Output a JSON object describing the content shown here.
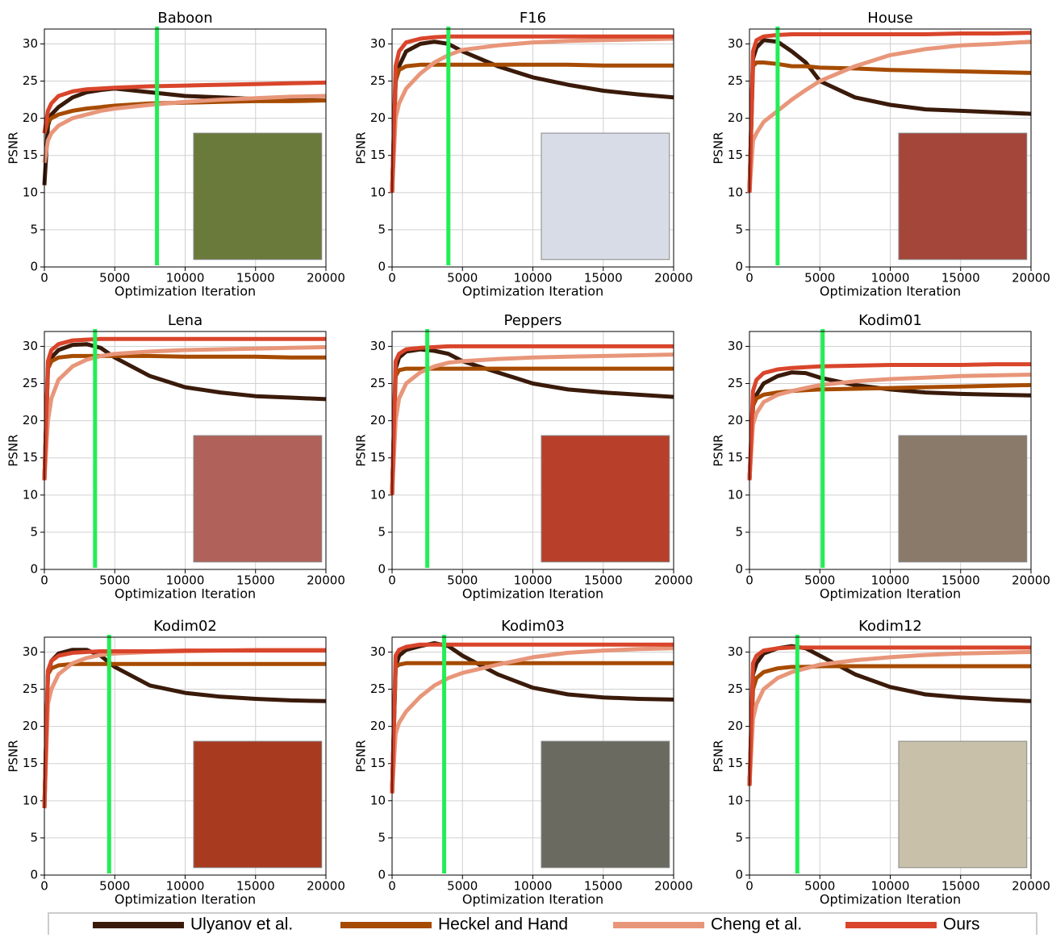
{
  "legend": [
    {
      "name": "Ulyanov et al.",
      "color": "#3a1a0a"
    },
    {
      "name": "Heckel and Hand",
      "color": "#a64b00"
    },
    {
      "name": "Cheng et al.",
      "color": "#e8967a"
    },
    {
      "name": "Ours",
      "color": "#d9452b"
    }
  ],
  "chart_data": [
    {
      "type": "line",
      "title": "Baboon",
      "xlabel": "Optimization Iteration",
      "ylabel": "PSNR",
      "xlim": [
        0,
        20000
      ],
      "ylim": [
        0,
        32
      ],
      "xticks": [
        0,
        5000,
        10000,
        15000,
        20000
      ],
      "yticks": [
        0,
        5,
        10,
        15,
        20,
        25,
        30
      ],
      "grid": true,
      "marker_x": 8000,
      "marker_color": "#22ee55",
      "x": [
        0,
        250,
        500,
        1000,
        2000,
        3000,
        4000,
        5000,
        7500,
        10000,
        12500,
        15000,
        17500,
        20000
      ],
      "series": [
        {
          "values": [
            11,
            19,
            20.5,
            21.5,
            22.8,
            23.5,
            23.8,
            24,
            23.5,
            23,
            22.8,
            22.6,
            22.5,
            22.4
          ]
        },
        {
          "values": [
            18,
            19.5,
            20,
            20.5,
            21,
            21.3,
            21.5,
            21.7,
            22,
            22.1,
            22.2,
            22.3,
            22.3,
            22.4
          ]
        },
        {
          "values": [
            14,
            17,
            18,
            19,
            20,
            20.5,
            21,
            21.3,
            21.8,
            22.2,
            22.5,
            22.7,
            22.9,
            23
          ]
        },
        {
          "values": [
            18,
            21,
            22,
            23,
            23.6,
            23.9,
            24,
            24.1,
            24.3,
            24.4,
            24.5,
            24.6,
            24.7,
            24.8
          ]
        }
      ]
    },
    {
      "type": "line",
      "title": "F16",
      "xlabel": "Optimization Iteration",
      "ylabel": "PSNR",
      "xlim": [
        0,
        20000
      ],
      "ylim": [
        0,
        32
      ],
      "xticks": [
        0,
        5000,
        10000,
        15000,
        20000
      ],
      "yticks": [
        0,
        5,
        10,
        15,
        20,
        25,
        30
      ],
      "grid": true,
      "marker_x": 4000,
      "marker_color": "#22ee55",
      "x": [
        0,
        250,
        500,
        1000,
        2000,
        3000,
        4000,
        5000,
        7500,
        10000,
        12500,
        15000,
        17500,
        20000
      ],
      "series": [
        {
          "values": [
            10,
            25,
            27,
            29,
            30,
            30.3,
            30,
            29,
            27,
            25.5,
            24.5,
            23.7,
            23.2,
            22.8
          ]
        },
        {
          "values": [
            10,
            25,
            26.5,
            27,
            27.2,
            27.2,
            27.2,
            27.2,
            27.2,
            27.2,
            27.2,
            27.1,
            27.1,
            27.1
          ]
        },
        {
          "values": [
            10,
            20,
            22,
            24,
            26,
            27.5,
            28.5,
            29.2,
            29.8,
            30.2,
            30.4,
            30.5,
            30.6,
            30.7
          ]
        },
        {
          "values": [
            10,
            27,
            29,
            30.2,
            30.7,
            30.9,
            31,
            31,
            31,
            31,
            31,
            31,
            31,
            31
          ]
        }
      ]
    },
    {
      "type": "line",
      "title": "House",
      "xlabel": "Optimization Iteration",
      "ylabel": "PSNR",
      "xlim": [
        0,
        20000
      ],
      "ylim": [
        0,
        32
      ],
      "xticks": [
        0,
        5000,
        10000,
        15000,
        20000
      ],
      "yticks": [
        0,
        5,
        10,
        15,
        20,
        25,
        30
      ],
      "grid": true,
      "marker_x": 2000,
      "marker_color": "#22ee55",
      "x": [
        0,
        250,
        500,
        1000,
        2000,
        3000,
        4000,
        5000,
        7500,
        10000,
        12500,
        15000,
        17500,
        20000
      ],
      "series": [
        {
          "values": [
            10,
            28,
            29.5,
            30.5,
            30.3,
            29,
            27.5,
            25,
            22.8,
            21.8,
            21.2,
            21,
            20.8,
            20.6
          ]
        },
        {
          "values": [
            10,
            27,
            27.5,
            27.5,
            27.3,
            27,
            27,
            26.8,
            26.7,
            26.5,
            26.4,
            26.3,
            26.2,
            26.1
          ]
        },
        {
          "values": [
            10,
            17,
            18,
            19.5,
            21,
            22.5,
            23.8,
            25,
            27,
            28.5,
            29.3,
            29.8,
            30,
            30.3
          ]
        },
        {
          "values": [
            10,
            29,
            30.5,
            31,
            31.2,
            31.3,
            31.3,
            31.3,
            31.3,
            31.3,
            31.3,
            31.4,
            31.4,
            31.5
          ]
        }
      ]
    },
    {
      "type": "line",
      "title": "Lena",
      "xlabel": "Optimization Iteration",
      "ylabel": "PSNR",
      "xlim": [
        0,
        20000
      ],
      "ylim": [
        0,
        32
      ],
      "xticks": [
        0,
        5000,
        10000,
        15000,
        20000
      ],
      "yticks": [
        0,
        5,
        10,
        15,
        20,
        25,
        30
      ],
      "grid": true,
      "marker_x": 3600,
      "marker_color": "#22ee55",
      "x": [
        0,
        250,
        500,
        1000,
        2000,
        3000,
        4000,
        5000,
        7500,
        10000,
        12500,
        15000,
        17500,
        20000
      ],
      "series": [
        {
          "values": [
            12,
            27,
            28.5,
            29.5,
            30.2,
            30.3,
            29.8,
            28.5,
            26,
            24.5,
            23.8,
            23.3,
            23.1,
            22.9
          ]
        },
        {
          "values": [
            12,
            27,
            28,
            28.5,
            28.7,
            28.7,
            28.7,
            28.7,
            28.7,
            28.6,
            28.6,
            28.6,
            28.5,
            28.5
          ]
        },
        {
          "values": [
            12,
            20,
            23,
            25.5,
            27.3,
            28.2,
            28.7,
            29,
            29.3,
            29.5,
            29.6,
            29.7,
            29.8,
            29.9
          ]
        },
        {
          "values": [
            12,
            28,
            29.5,
            30.3,
            30.8,
            30.9,
            31,
            31,
            31,
            31,
            31,
            31,
            31,
            31
          ]
        }
      ]
    },
    {
      "type": "line",
      "title": "Peppers",
      "xlabel": "Optimization Iteration",
      "ylabel": "PSNR",
      "xlim": [
        0,
        20000
      ],
      "ylim": [
        0,
        32
      ],
      "xticks": [
        0,
        5000,
        10000,
        15000,
        20000
      ],
      "yticks": [
        0,
        5,
        10,
        15,
        20,
        25,
        30
      ],
      "grid": true,
      "marker_x": 2500,
      "marker_color": "#22ee55",
      "x": [
        0,
        250,
        500,
        1000,
        2000,
        3000,
        4000,
        5000,
        7500,
        10000,
        12500,
        15000,
        17500,
        20000
      ],
      "series": [
        {
          "values": [
            10,
            27,
            28.5,
            29.3,
            29.6,
            29.4,
            29,
            28,
            26.5,
            25,
            24.2,
            23.8,
            23.5,
            23.2
          ]
        },
        {
          "values": [
            10,
            26,
            26.8,
            27,
            27,
            27,
            27,
            27,
            27,
            27,
            27,
            27,
            27,
            27
          ]
        },
        {
          "values": [
            10,
            20,
            23,
            25,
            26.5,
            27.3,
            27.8,
            28,
            28.3,
            28.5,
            28.6,
            28.7,
            28.8,
            28.9
          ]
        },
        {
          "values": [
            10,
            28,
            29,
            29.6,
            29.8,
            29.9,
            30,
            30,
            30,
            30,
            30,
            30,
            30,
            30
          ]
        }
      ]
    },
    {
      "type": "line",
      "title": "Kodim01",
      "xlabel": "Optimization Iteration",
      "ylabel": "PSNR",
      "xlim": [
        0,
        20000
      ],
      "ylim": [
        0,
        32
      ],
      "xticks": [
        0,
        5000,
        10000,
        15000,
        20000
      ],
      "yticks": [
        0,
        5,
        10,
        15,
        20,
        25,
        30
      ],
      "grid": true,
      "marker_x": 5200,
      "marker_color": "#22ee55",
      "x": [
        0,
        250,
        500,
        1000,
        2000,
        3000,
        4000,
        5000,
        7500,
        10000,
        12500,
        15000,
        17500,
        20000
      ],
      "series": [
        {
          "values": [
            12,
            22,
            23.5,
            25,
            26,
            26.5,
            26.4,
            25.8,
            24.8,
            24.2,
            23.8,
            23.6,
            23.5,
            23.4
          ]
        },
        {
          "values": [
            12,
            22,
            23,
            23.5,
            23.8,
            24,
            24.1,
            24.2,
            24.3,
            24.4,
            24.5,
            24.6,
            24.7,
            24.8
          ]
        },
        {
          "values": [
            12,
            19.5,
            21,
            22.5,
            23.5,
            24,
            24.4,
            24.8,
            25.3,
            25.6,
            25.8,
            26,
            26.1,
            26.2
          ]
        },
        {
          "values": [
            12,
            24,
            25.5,
            26.4,
            26.9,
            27.1,
            27.2,
            27.3,
            27.4,
            27.5,
            27.5,
            27.5,
            27.6,
            27.6
          ]
        }
      ]
    },
    {
      "type": "line",
      "title": "Kodim02",
      "xlabel": "Optimization Iteration",
      "ylabel": "PSNR",
      "xlim": [
        0,
        20000
      ],
      "ylim": [
        0,
        32
      ],
      "xticks": [
        0,
        5000,
        10000,
        15000,
        20000
      ],
      "yticks": [
        0,
        5,
        10,
        15,
        20,
        25,
        30
      ],
      "grid": true,
      "marker_x": 4600,
      "marker_color": "#22ee55",
      "x": [
        0,
        250,
        500,
        1000,
        2000,
        3000,
        4000,
        5000,
        7500,
        10000,
        12500,
        15000,
        17500,
        20000
      ],
      "series": [
        {
          "values": [
            9,
            27,
            28.8,
            29.8,
            30.3,
            30.3,
            29.5,
            28,
            25.5,
            24.5,
            24,
            23.7,
            23.5,
            23.4
          ]
        },
        {
          "values": [
            9,
            27,
            27.8,
            28.2,
            28.4,
            28.4,
            28.4,
            28.4,
            28.4,
            28.4,
            28.4,
            28.4,
            28.4,
            28.4
          ]
        },
        {
          "values": [
            9,
            23,
            25,
            27,
            28.5,
            29.2,
            29.6,
            29.8,
            30,
            30.1,
            30.2,
            30.3,
            30.3,
            30.3
          ]
        },
        {
          "values": [
            9,
            27.5,
            28.8,
            29.5,
            29.9,
            30,
            30.1,
            30.1,
            30.1,
            30.2,
            30.2,
            30.2,
            30.2,
            30.2
          ]
        }
      ]
    },
    {
      "type": "line",
      "title": "Kodim03",
      "xlabel": "Optimization Iteration",
      "ylabel": "PSNR",
      "xlim": [
        0,
        20000
      ],
      "ylim": [
        0,
        32
      ],
      "xticks": [
        0,
        5000,
        10000,
        15000,
        20000
      ],
      "yticks": [
        0,
        5,
        10,
        15,
        20,
        25,
        30
      ],
      "grid": true,
      "marker_x": 3700,
      "marker_color": "#22ee55",
      "x": [
        0,
        250,
        500,
        1000,
        2000,
        3000,
        4000,
        5000,
        7500,
        10000,
        12500,
        15000,
        17500,
        20000
      ],
      "series": [
        {
          "values": [
            11,
            28,
            29.5,
            30.3,
            30.8,
            31.2,
            30.8,
            29.5,
            27,
            25.2,
            24.3,
            23.9,
            23.7,
            23.6
          ]
        },
        {
          "values": [
            11,
            28,
            28.3,
            28.5,
            28.5,
            28.5,
            28.5,
            28.5,
            28.5,
            28.5,
            28.5,
            28.5,
            28.5,
            28.5
          ]
        },
        {
          "values": [
            11,
            19,
            20.5,
            22,
            24,
            25.5,
            26.5,
            27.2,
            28.3,
            29.3,
            29.9,
            30.2,
            30.4,
            30.5
          ]
        },
        {
          "values": [
            11,
            29.5,
            30.3,
            30.7,
            31,
            31,
            31,
            31,
            31,
            31,
            31,
            31,
            31,
            31
          ]
        }
      ]
    },
    {
      "type": "line",
      "title": "Kodim12",
      "xlabel": "Optimization Iteration",
      "ylabel": "PSNR",
      "xlim": [
        0,
        20000
      ],
      "ylim": [
        0,
        32
      ],
      "xticks": [
        0,
        5000,
        10000,
        15000,
        20000
      ],
      "yticks": [
        0,
        5,
        10,
        15,
        20,
        25,
        30
      ],
      "grid": true,
      "marker_x": 3400,
      "marker_color": "#22ee55",
      "x": [
        0,
        250,
        500,
        1000,
        2000,
        3000,
        4000,
        5000,
        7500,
        10000,
        12500,
        15000,
        17500,
        20000
      ],
      "series": [
        {
          "values": [
            12,
            27,
            28.5,
            29.8,
            30.5,
            30.8,
            30.5,
            29.5,
            27,
            25.3,
            24.3,
            23.9,
            23.6,
            23.4
          ]
        },
        {
          "values": [
            12,
            25,
            26.5,
            27.3,
            27.8,
            28,
            28,
            28.1,
            28.1,
            28.1,
            28.1,
            28.1,
            28.1,
            28.1
          ]
        },
        {
          "values": [
            12,
            21,
            23,
            25,
            26.5,
            27.3,
            27.8,
            28.3,
            28.9,
            29.3,
            29.6,
            29.8,
            29.9,
            30
          ]
        },
        {
          "values": [
            12,
            28.5,
            29.5,
            30.2,
            30.5,
            30.6,
            30.6,
            30.6,
            30.6,
            30.6,
            30.6,
            30.6,
            30.6,
            30.6
          ]
        }
      ]
    }
  ]
}
